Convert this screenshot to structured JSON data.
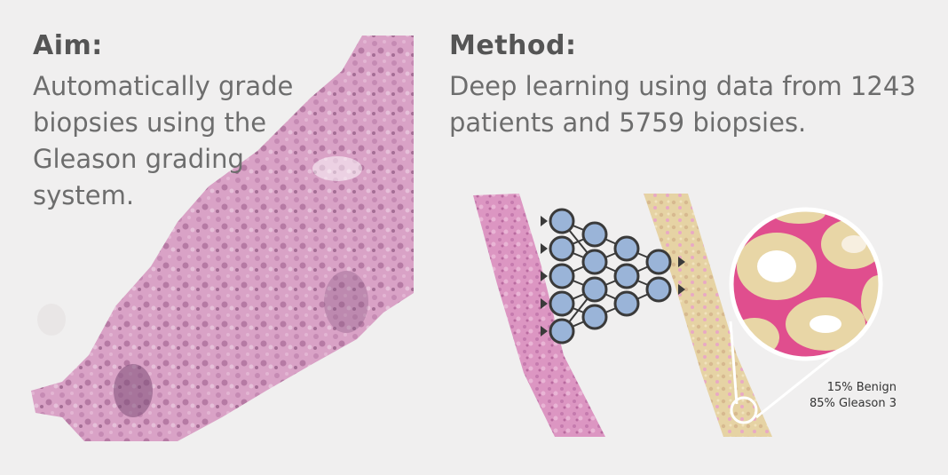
{
  "aim": {
    "heading": "Aim:",
    "lines": [
      "Automatically grade",
      "biopsies using the",
      "Gleason grading",
      "system."
    ]
  },
  "method": {
    "heading": "Method:",
    "lines": [
      "Deep learning using data from 1243",
      "patients and 5759 biopsies."
    ]
  },
  "result": {
    "benign": "15% Benign",
    "gleason": "85% Gleason 3"
  },
  "colors": {
    "background": "#f0efef",
    "tissue_pink": "#d89ac0",
    "tissue_dark": "#a9709a",
    "node_fill": "#9ab4d8",
    "node_stroke": "#3a3a3a",
    "gleason_tan": "#e3d2a0"
  }
}
